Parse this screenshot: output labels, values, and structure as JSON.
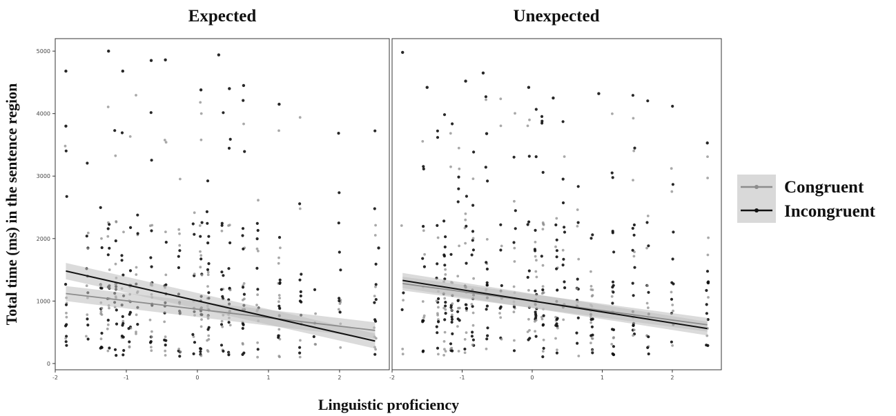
{
  "chart_data": {
    "type": "scatter",
    "layout": "two-panel facet",
    "xlabel": "Linguistic proficiency",
    "ylabel": "Total time (ms) in the sentence region",
    "xlim": [
      -2,
      2.7
    ],
    "ylim": [
      -100,
      5200
    ],
    "xticks": [
      -2,
      -1,
      0,
      1,
      2
    ],
    "yticks": [
      0,
      1000,
      2000,
      3000,
      4000,
      5000
    ],
    "grid": false,
    "legend": {
      "position": "right",
      "background": "#d9d9d9",
      "entries": [
        {
          "name": "Congruent",
          "color": "#8c8c8c"
        },
        {
          "name": "Incongruent",
          "color": "#111111"
        }
      ]
    },
    "series_colors": {
      "Congruent": "#8c8c8c",
      "Incongruent": "#111111",
      "band": "#bdbdbd"
    },
    "x_levels": [
      -1.85,
      -1.55,
      -1.35,
      -1.25,
      -1.15,
      -1.05,
      -0.95,
      -0.85,
      -0.65,
      -0.45,
      -0.25,
      -0.05,
      0.05,
      0.15,
      0.35,
      0.45,
      0.65,
      0.85,
      1.15,
      1.45,
      1.65,
      2.0,
      2.5
    ],
    "panels": [
      {
        "title": "Expected",
        "fit_lines": [
          {
            "series": "Congruent",
            "x": [
              -1.85,
              2.5
            ],
            "y": [
              1120,
              530
            ],
            "band": [
              120,
              130
            ]
          },
          {
            "series": "Incongruent",
            "x": [
              -1.85,
              2.5
            ],
            "y": [
              1480,
              360
            ],
            "band": [
              130,
              120
            ]
          }
        ],
        "highlight_points": [
          {
            "x": -1.85,
            "y": 4680
          },
          {
            "x": -1.85,
            "y": 3800
          },
          {
            "x": -1.25,
            "y": 5000
          },
          {
            "x": -1.05,
            "y": 4680
          },
          {
            "x": -0.65,
            "y": 4850
          },
          {
            "x": -0.45,
            "y": 4860
          },
          {
            "x": 0.65,
            "y": 4450
          },
          {
            "x": 0.3,
            "y": 4940
          },
          {
            "x": 1.15,
            "y": 4150
          },
          {
            "x": 0.05,
            "y": 4380
          },
          {
            "x": 0.45,
            "y": 4400
          },
          {
            "x": 2.55,
            "y": 1850
          }
        ]
      },
      {
        "title": "Unexpected",
        "fit_lines": [
          {
            "series": "Congruent",
            "x": [
              -1.85,
              2.5
            ],
            "y": [
              1280,
              620
            ],
            "band": [
              110,
              110
            ]
          },
          {
            "series": "Incongruent",
            "x": [
              -1.85,
              2.5
            ],
            "y": [
              1330,
              560
            ],
            "band": [
              120,
              110
            ]
          }
        ],
        "highlight_points": [
          {
            "x": -1.85,
            "y": 4980
          },
          {
            "x": -1.5,
            "y": 4420
          },
          {
            "x": -0.7,
            "y": 4650
          },
          {
            "x": -0.95,
            "y": 4520
          },
          {
            "x": -0.05,
            "y": 4420
          },
          {
            "x": 0.3,
            "y": 4250
          },
          {
            "x": 0.95,
            "y": 4320
          },
          {
            "x": 2.5,
            "y": 3530
          },
          {
            "x": -0.65,
            "y": 3680
          }
        ]
      }
    ]
  }
}
